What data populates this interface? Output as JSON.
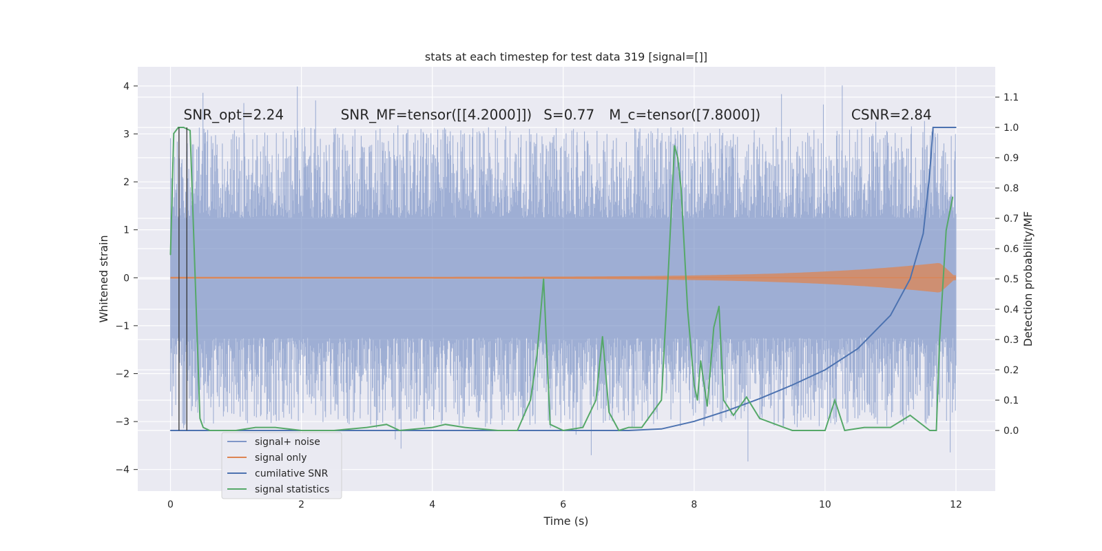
{
  "chart_data": {
    "type": "line",
    "title": "stats at each timestep for test data 319 [signal=[]]",
    "xlabel": "Time (s)",
    "ylabel": "Whitened strain",
    "y2label": "Detection probability/MF",
    "xlim": [
      -0.5,
      12.6
    ],
    "ylim": [
      -4.45,
      4.4
    ],
    "y2lim": [
      -0.2,
      1.2
    ],
    "xticks": [
      0,
      2,
      4,
      6,
      8,
      10,
      12
    ],
    "xtick_labels": [
      "0",
      "2",
      "4",
      "6",
      "8",
      "10",
      "12"
    ],
    "yticks": [
      4,
      3,
      2,
      1,
      0,
      -1,
      -2,
      -3,
      -4
    ],
    "ytick_labels": [
      "4",
      "3",
      "2",
      "1",
      "0",
      "−1",
      "−2",
      "−3",
      "−4"
    ],
    "y2ticks": [
      1.1,
      1.0,
      0.9,
      0.8,
      0.7,
      0.6,
      0.5,
      0.4,
      0.3,
      0.2,
      0.1,
      0.0
    ],
    "y2tick_labels": [
      "1.1",
      "1.0",
      "0.9",
      "0.8",
      "0.7",
      "0.6",
      "0.5",
      "0.4",
      "0.3",
      "0.2",
      "0.1",
      "0.0"
    ],
    "grid": true,
    "legend_position": "lower-left",
    "annotations": [
      {
        "x": 0.2,
        "y": 3.3,
        "text": "SNR_opt=2.24"
      },
      {
        "x": 2.6,
        "y": 3.3,
        "text": "SNR_MF=tensor([[4.2000]])"
      },
      {
        "x": 5.7,
        "y": 3.3,
        "text": "S=0.77"
      },
      {
        "x": 6.7,
        "y": 3.3,
        "text": "M_c=tensor([7.8000])"
      },
      {
        "x": 10.4,
        "y": 3.3,
        "text": "CSNR=2.84"
      }
    ],
    "vertical_markers": [
      0.13,
      0.25
    ],
    "series": [
      {
        "name": "signal+ noise",
        "color": "#7f96c8",
        "opacity": 0.7,
        "axis": "left",
        "kind": "noise",
        "t_start": 0,
        "t_end": 12,
        "core_amplitude": 1.25,
        "typical_peak": 2.2,
        "max_abs": 4.05
      },
      {
        "name": "signal only",
        "color": "#dd8452",
        "axis": "left",
        "kind": "chirp",
        "t_start": 0,
        "t_end": 12,
        "amplitude_start": 0.02,
        "amplitude_end": 0.35
      },
      {
        "name": "cumilative SNR",
        "color": "#4c72b0",
        "axis": "right",
        "x": [
          0,
          7.0,
          7.5,
          8.0,
          8.5,
          9.0,
          9.5,
          10.0,
          10.5,
          11.0,
          11.3,
          11.5,
          11.6,
          11.65,
          12.0
        ],
        "y": [
          0,
          0,
          0.005,
          0.03,
          0.065,
          0.105,
          0.15,
          0.2,
          0.27,
          0.38,
          0.5,
          0.65,
          0.85,
          1.0,
          1.0
        ]
      },
      {
        "name": "signal statistics",
        "color": "#55a868",
        "axis": "right",
        "x": [
          0,
          0.05,
          0.12,
          0.2,
          0.3,
          0.4,
          0.45,
          0.5,
          0.6,
          0.8,
          1.0,
          1.3,
          1.6,
          2.0,
          2.5,
          3.0,
          3.3,
          3.5,
          4.0,
          4.2,
          4.5,
          5.0,
          5.3,
          5.5,
          5.6,
          5.7,
          5.8,
          6.0,
          6.3,
          6.5,
          6.6,
          6.7,
          6.85,
          7.0,
          7.2,
          7.5,
          7.6,
          7.7,
          7.75,
          7.8,
          7.9,
          8.0,
          8.05,
          8.1,
          8.2,
          8.3,
          8.38,
          8.45,
          8.6,
          8.8,
          9.0,
          9.5,
          10.0,
          10.15,
          10.3,
          10.6,
          11.0,
          11.3,
          11.6,
          11.7,
          11.75,
          11.85,
          11.95
        ],
        "y": [
          0.58,
          0.98,
          1.0,
          1.0,
          0.99,
          0.36,
          0.04,
          0.01,
          0.0,
          0.0,
          0.0,
          0.01,
          0.01,
          0.0,
          0.0,
          0.01,
          0.02,
          0.0,
          0.01,
          0.02,
          0.01,
          0.0,
          0.0,
          0.1,
          0.25,
          0.5,
          0.02,
          0.0,
          0.01,
          0.1,
          0.31,
          0.06,
          0.0,
          0.01,
          0.01,
          0.1,
          0.5,
          0.94,
          0.9,
          0.8,
          0.4,
          0.15,
          0.1,
          0.23,
          0.08,
          0.34,
          0.41,
          0.1,
          0.05,
          0.11,
          0.04,
          0.0,
          0.0,
          0.1,
          0.0,
          0.01,
          0.01,
          0.05,
          0.0,
          0.0,
          0.3,
          0.66,
          0.77
        ]
      }
    ]
  }
}
